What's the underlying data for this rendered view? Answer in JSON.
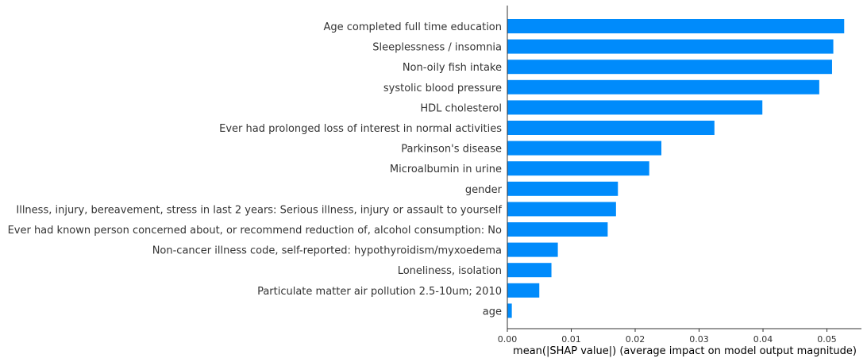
{
  "chart_data": {
    "type": "bar",
    "orientation": "horizontal",
    "categories": [
      "Age completed full time education",
      "Sleeplessness / insomnia",
      "Non-oily fish intake",
      "systolic blood pressure",
      "HDL cholesterol",
      "Ever had prolonged loss of interest in normal activities",
      "Parkinson's disease",
      "Microalbumin in urine",
      "gender",
      "Illness, injury, bereavement, stress in last 2 years: Serious illness, injury or assault to yourself",
      "Ever had known person concerned about, or recommend reduction of, alcohol consumption: No",
      "Non-cancer illness code, self-reported: hypothyroidism/myxoedema",
      "Loneliness, isolation",
      "Particulate matter air pollution 2.5-10um; 2010",
      "age"
    ],
    "values": [
      0.0527,
      0.051,
      0.0508,
      0.0488,
      0.0399,
      0.0324,
      0.0241,
      0.0222,
      0.0173,
      0.017,
      0.0157,
      0.0079,
      0.0069,
      0.005,
      0.0007
    ],
    "xlabel": "mean(|SHAP value|) (average impact on model output magnitude)",
    "xlim": [
      0,
      0.0554
    ],
    "xticks": [
      0.0,
      0.01,
      0.02,
      0.03,
      0.04,
      0.05
    ],
    "xtick_labels": [
      "0.00",
      "0.01",
      "0.02",
      "0.03",
      "0.04",
      "0.05"
    ],
    "bar_color": "#008bfb",
    "grid": false
  }
}
